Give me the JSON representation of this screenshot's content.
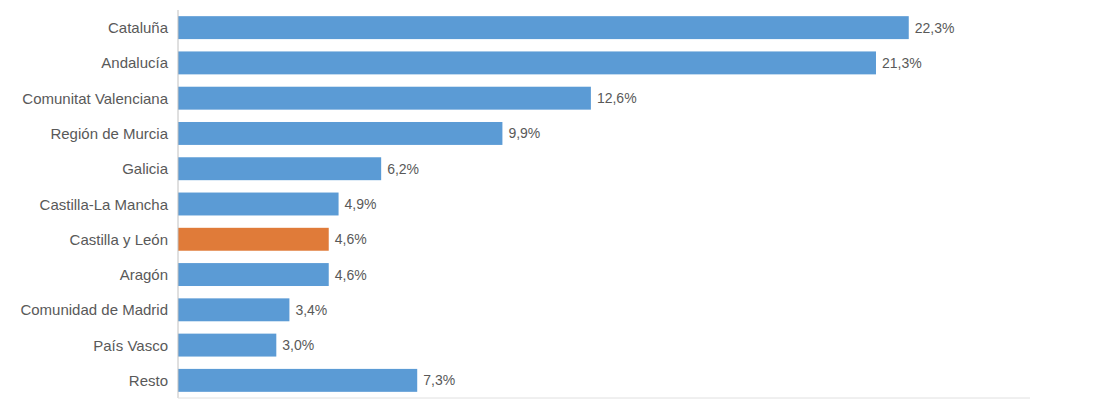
{
  "chart_data": {
    "type": "bar",
    "orientation": "horizontal",
    "categories": [
      "Cataluña",
      "Andalucía",
      "Comunitat Valenciana",
      "Región de Murcia",
      "Galicia",
      "Castilla-La Mancha",
      "Castilla y León",
      "Aragón",
      "Comunidad de Madrid",
      "País Vasco",
      "Resto"
    ],
    "values": [
      22.3,
      21.3,
      12.6,
      9.9,
      6.2,
      4.9,
      4.6,
      4.6,
      3.4,
      3.0,
      7.3
    ],
    "value_labels": [
      "22,3%",
      "21,3%",
      "12,6%",
      "9,9%",
      "6,2%",
      "4,9%",
      "4,6%",
      "4,6%",
      "3,4%",
      "3,0%",
      "7,3%"
    ],
    "colors": [
      "#5B9BD5",
      "#5B9BD5",
      "#5B9BD5",
      "#5B9BD5",
      "#5B9BD5",
      "#5B9BD5",
      "#E07B39",
      "#5B9BD5",
      "#5B9BD5",
      "#5B9BD5",
      "#5B9BD5"
    ],
    "xlim": [
      0,
      26
    ],
    "data_labels": true,
    "tick_labels": "y",
    "grid": false
  }
}
